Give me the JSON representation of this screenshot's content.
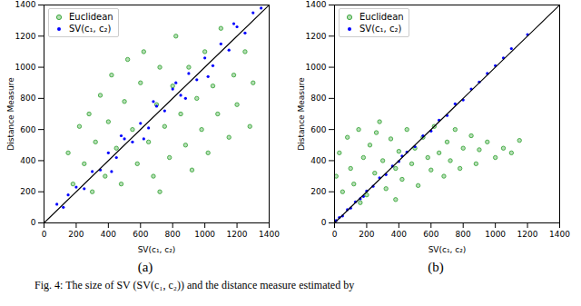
{
  "caption": "Fig. 4: The size of SV (SV(c₁, c₂)) and the distance measure estimated by",
  "chart_data": [
    {
      "type": "scatter",
      "caption": "(a)",
      "x_label": "SV(c₁, c₂)",
      "y_label": "Distance Measure",
      "xlim": [
        0,
        1400
      ],
      "ylim": [
        0,
        1400
      ],
      "xticks": [
        0,
        200,
        400,
        600,
        800,
        1000,
        1200,
        1400
      ],
      "yticks": [
        0,
        200,
        400,
        600,
        800,
        1000,
        1200,
        1400
      ],
      "grid": false,
      "legend": "upper left",
      "series": [
        {
          "name": "Euclidean",
          "color": "#2ca02c",
          "marker": "circle",
          "x": [
            150,
            180,
            220,
            250,
            280,
            300,
            320,
            350,
            380,
            400,
            420,
            450,
            480,
            500,
            520,
            550,
            580,
            600,
            620,
            650,
            680,
            700,
            720,
            750,
            780,
            800,
            820,
            850,
            880,
            900,
            920,
            950,
            980,
            1000,
            1020,
            1050,
            1080,
            1100,
            1150,
            1180,
            1200,
            1250,
            1280,
            1300,
            720
          ],
          "values": [
            450,
            250,
            620,
            380,
            700,
            200,
            520,
            820,
            300,
            650,
            950,
            480,
            250,
            780,
            1050,
            600,
            380,
            900,
            1100,
            520,
            300,
            760,
            1000,
            620,
            420,
            880,
            1200,
            700,
            500,
            1000,
            340,
            800,
            600,
            1100,
            450,
            880,
            700,
            1250,
            550,
            950,
            760,
            1100,
            620,
            900,
            200
          ]
        },
        {
          "name": "SV(c₁, c₂)",
          "color": "#0000ff",
          "marker": "dot",
          "x": [
            80,
            120,
            150,
            200,
            250,
            300,
            350,
            400,
            450,
            500,
            550,
            600,
            650,
            700,
            750,
            800,
            850,
            900,
            950,
            1000,
            1050,
            1100,
            1150,
            1200,
            1250,
            1300,
            1350,
            420,
            620,
            820,
            1020,
            680,
            480,
            880,
            1180
          ],
          "values": [
            120,
            100,
            180,
            230,
            220,
            330,
            340,
            450,
            420,
            540,
            520,
            640,
            610,
            750,
            720,
            860,
            820,
            960,
            920,
            1060,
            1010,
            1150,
            1110,
            1260,
            1220,
            1350,
            1380,
            330,
            540,
            900,
            940,
            780,
            560,
            800,
            1280
          ]
        },
        {
          "type": "line",
          "color": "#000000",
          "line_style": "solid",
          "x": [
            0,
            1400
          ],
          "values": [
            0,
            1400
          ]
        }
      ]
    },
    {
      "type": "scatter",
      "caption": "(b)",
      "x_label": "SV(c₁, c₂)",
      "y_label": "Distance Measure",
      "xlim": [
        0,
        1400
      ],
      "ylim": [
        0,
        1400
      ],
      "xticks": [
        0,
        200,
        400,
        600,
        800,
        1000,
        1200,
        1400
      ],
      "yticks": [
        0,
        200,
        400,
        600,
        800,
        1000,
        1200,
        1400
      ],
      "grid": false,
      "legend": "upper left",
      "series": [
        {
          "name": "Euclidean",
          "color": "#2ca02c",
          "marker": "circle",
          "x": [
            10,
            30,
            50,
            80,
            100,
            120,
            150,
            180,
            200,
            220,
            250,
            280,
            300,
            320,
            350,
            380,
            400,
            420,
            450,
            480,
            500,
            520,
            550,
            580,
            600,
            620,
            650,
            680,
            700,
            720,
            750,
            780,
            800,
            850,
            880,
            900,
            950,
            1000,
            1050,
            1100,
            1150,
            380,
            160,
            260
          ],
          "values": [
            300,
            450,
            200,
            550,
            350,
            250,
            600,
            420,
            180,
            500,
            320,
            650,
            400,
            220,
            540,
            350,
            460,
            280,
            600,
            380,
            480,
            240,
            550,
            420,
            340,
            620,
            450,
            300,
            520,
            400,
            600,
            350,
            480,
            560,
            380,
            470,
            520,
            420,
            480,
            450,
            530,
            150,
            130,
            580
          ]
        },
        {
          "name": "SV(c₁, c₂)",
          "color": "#0000ff",
          "marker": "dot",
          "x": [
            10,
            30,
            50,
            80,
            100,
            130,
            160,
            200,
            240,
            280,
            320,
            360,
            400,
            450,
            500,
            550,
            600,
            650,
            700,
            750,
            800,
            850,
            900,
            950,
            1000,
            1050,
            1100,
            1200,
            180,
            420
          ],
          "values": [
            15,
            35,
            45,
            85,
            95,
            135,
            155,
            205,
            235,
            290,
            310,
            365,
            395,
            455,
            490,
            560,
            590,
            660,
            690,
            765,
            790,
            860,
            905,
            960,
            1010,
            1060,
            1120,
            1210,
            170,
            430
          ]
        },
        {
          "type": "line",
          "color": "#000000",
          "line_style": "solid",
          "x": [
            0,
            1400
          ],
          "values": [
            0,
            1400
          ]
        }
      ]
    }
  ]
}
